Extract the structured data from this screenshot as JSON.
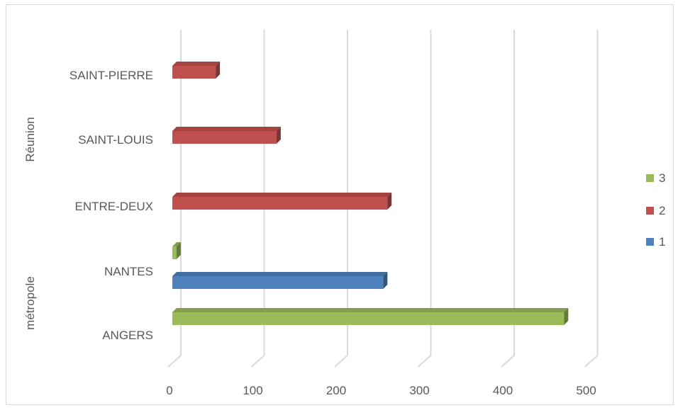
{
  "chart_data": {
    "type": "bar",
    "orientation": "horizontal",
    "style": "3d",
    "categories": [
      {
        "label": "ANGERS",
        "group": "métropole"
      },
      {
        "label": "NANTES",
        "group": "métropole"
      },
      {
        "label": "ENTRE-DEUX",
        "group": "Réunion"
      },
      {
        "label": "SAINT-LOUIS",
        "group": "Réunion"
      },
      {
        "label": "SAINT-PIERRE",
        "group": "Réunion"
      }
    ],
    "groups": [
      "métropole",
      "Réunion"
    ],
    "series": [
      {
        "name": "1",
        "color": "#4f81bd",
        "values": [
          null,
          253,
          null,
          null,
          null
        ]
      },
      {
        "name": "2",
        "color": "#c0504d",
        "values": [
          null,
          null,
          258,
          125,
          52
        ]
      },
      {
        "name": "3",
        "color": "#9bbb59",
        "values": [
          470,
          5,
          null,
          null,
          null
        ]
      }
    ],
    "xlim": [
      0,
      500
    ],
    "xticks": [
      "0",
      "100",
      "200",
      "300",
      "400",
      "500"
    ],
    "grid": true,
    "legend_position": "right",
    "legend_order": [
      "3",
      "2",
      "1"
    ]
  }
}
